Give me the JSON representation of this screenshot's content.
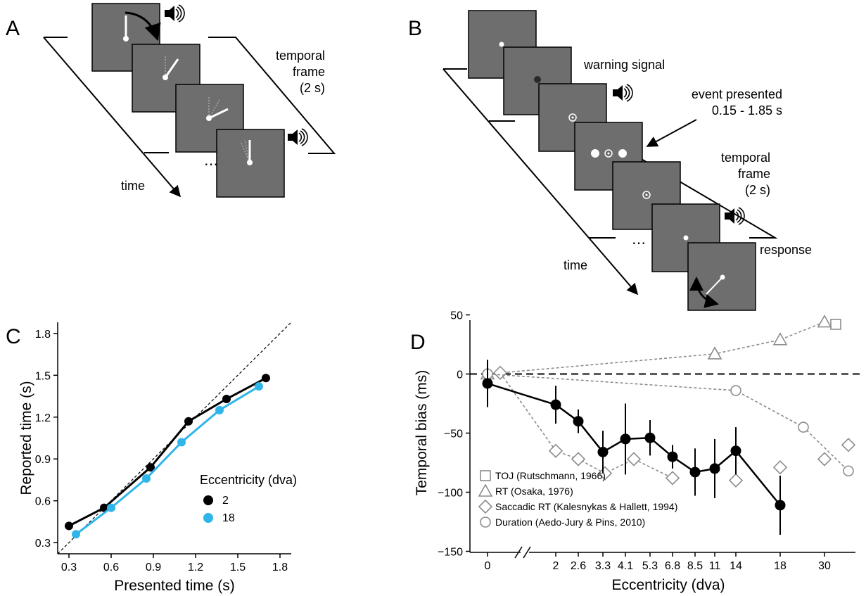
{
  "panels": {
    "A": {
      "letter": "A",
      "frame_label_1": "temporal",
      "frame_label_2": "frame",
      "frame_label_3": "(2 s)",
      "time_label": "time",
      "ellipsis": "⋯"
    },
    "B": {
      "letter": "B",
      "warning_label": "warning signal",
      "event_label_1": "event presented",
      "event_label_2": "0.15 - 1.85 s",
      "frame_label_1": "temporal",
      "frame_label_2": "frame",
      "frame_label_3": "(2 s)",
      "response_label": "response",
      "time_label": "time",
      "ellipsis": "⋯"
    },
    "C": {
      "letter": "C"
    },
    "D": {
      "letter": "D"
    }
  },
  "colors": {
    "screen": "#6e6e6e",
    "series_2": "#000000",
    "series_18": "#2fb5e8",
    "literature": "#8c8c8c"
  },
  "chart_data": [
    {
      "type": "line",
      "panel": "C",
      "xlabel": "Presented time (s)",
      "ylabel": "Reported time (s)",
      "xlim": [
        0.22,
        1.88
      ],
      "ylim": [
        0.22,
        1.88
      ],
      "xticks": [
        "0.3",
        "0.6",
        "0.9",
        "1.2",
        "1.5",
        "1.8"
      ],
      "yticks": [
        "0.3",
        "0.6",
        "0.9",
        "1.2",
        "1.5",
        "1.8"
      ],
      "reference_line": "identity",
      "legend_title": "Eccentricity (dva)",
      "series": [
        {
          "name": "2",
          "color": "#000000",
          "x": [
            0.3,
            0.55,
            0.88,
            1.15,
            1.42,
            1.7
          ],
          "y": [
            0.42,
            0.55,
            0.84,
            1.17,
            1.33,
            1.48
          ]
        },
        {
          "name": "18",
          "color": "#2fb5e8",
          "x": [
            0.35,
            0.6,
            0.85,
            1.1,
            1.37,
            1.65
          ],
          "y": [
            0.36,
            0.55,
            0.76,
            1.02,
            1.25,
            1.42
          ]
        }
      ]
    },
    {
      "type": "line",
      "panel": "D",
      "xlabel": "Eccentricity (dva)",
      "ylabel": "Temporal bias (ms)",
      "ylim": [
        -190,
        60
      ],
      "yticks": [
        "50",
        "0",
        "−50",
        "−100",
        "−150"
      ],
      "xticks": [
        "0",
        "2",
        "2.6",
        "3.3",
        "4.1",
        "5.3",
        "6.8",
        "8.5",
        "11",
        "14",
        "18",
        "30"
      ],
      "x_axis_break": true,
      "reference_line": "zero",
      "legend": [
        {
          "marker": "square",
          "label": "TOJ (Rutschmann, 1966)"
        },
        {
          "marker": "triangle",
          "label": "RT (Osaka, 1976)"
        },
        {
          "marker": "diamond",
          "label": "Saccadic RT (Kalesnykas & Hallett, 1994)"
        },
        {
          "marker": "circle",
          "label": "Duration (Aedo-Jury & Pins, 2010)"
        }
      ],
      "series_current": {
        "x": [
          "0",
          "2",
          "2.6",
          "3.3",
          "4.1",
          "5.3",
          "6.8",
          "8.5",
          "11",
          "14",
          "18"
        ],
        "y": [
          -8,
          -26,
          -40,
          -66,
          -55,
          -54,
          -70,
          -83,
          -80,
          -65,
          -111
        ],
        "err": [
          20,
          16,
          10,
          18,
          30,
          15,
          10,
          20,
          25,
          20,
          25
        ]
      },
      "series_literature": [
        {
          "marker": "square",
          "x": [
            33.5
          ],
          "y": [
            42
          ]
        },
        {
          "marker": "triangle",
          "x": [
            0,
            11,
            18,
            30
          ],
          "y": [
            0,
            17,
            29,
            44
          ]
        },
        {
          "marker": "diamond",
          "x": [
            0.6,
            2,
            2.6,
            3.4,
            4.4,
            6.8,
            8.0,
            14,
            18,
            30,
            36
          ],
          "y": [
            1,
            -65,
            -72,
            -84,
            -72,
            -88,
            -80,
            -90,
            -79,
            -72,
            -60
          ]
        },
        {
          "marker": "circle",
          "x": [
            0,
            14,
            26,
            36
          ],
          "y": [
            0,
            -14,
            -45,
            -82
          ]
        }
      ]
    }
  ]
}
